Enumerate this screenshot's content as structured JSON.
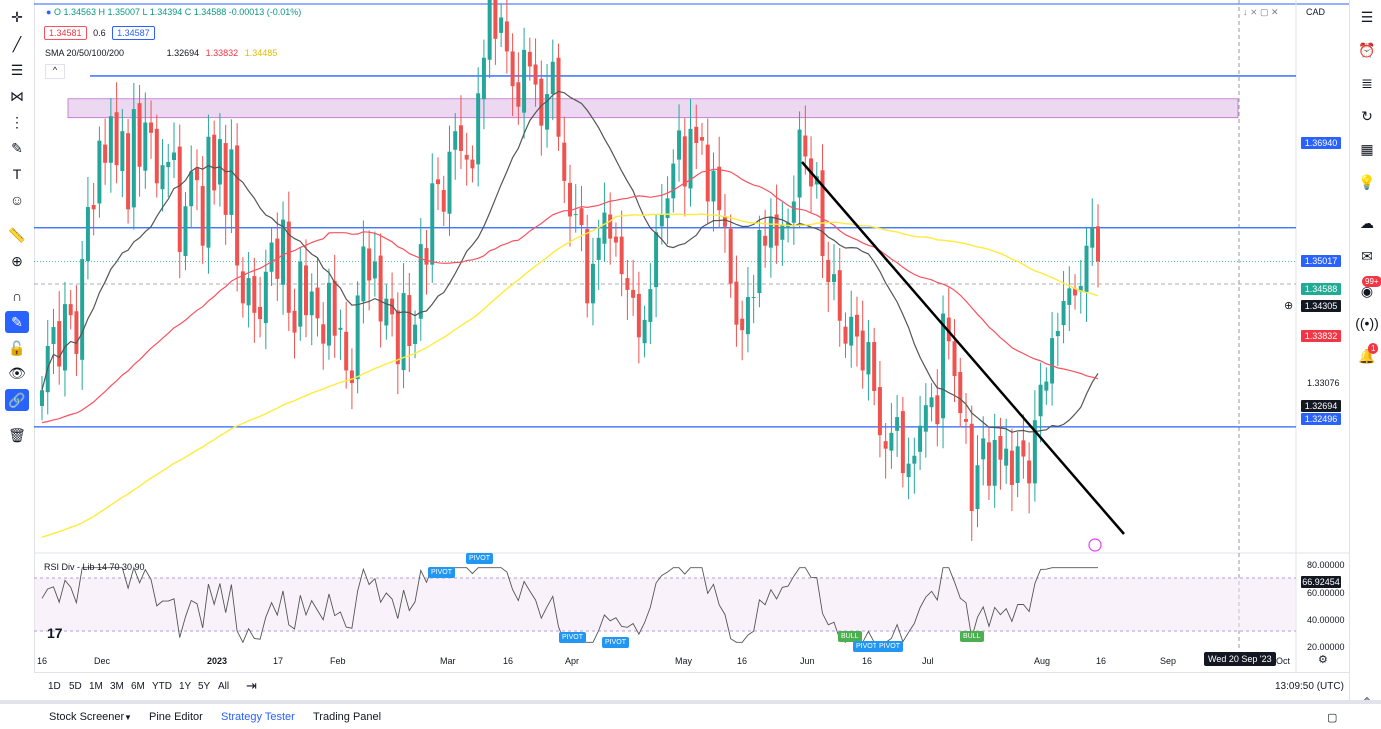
{
  "legend": {
    "ohlc": "O 1.34563  H 1.35007  L 1.34394  C 1.34588  -0.00013 (-0.01%)",
    "bid": "1.34581",
    "spread": "0.6",
    "ask": "1.34587",
    "sma_label": "SMA 20/50/100/200",
    "sma_v1": "1.32694",
    "sma_v2": "1.33832",
    "sma_v3": "1.34485",
    "collapse": "^"
  },
  "currency": "CAD",
  "price_labels": {
    "l1": "1.36940",
    "l2": "1.35017",
    "l3": "1.34588",
    "l4": "1.34305",
    "l5": "1.33832",
    "l6": "1.33076",
    "l7": "1.32694",
    "l8": "1.32496"
  },
  "rsi": {
    "label": "RSI Div - Lib 14 70 30 90",
    "value": "66.92454",
    "axis": [
      "80.00000",
      "60.00000",
      "40.00000",
      "20.00000"
    ],
    "pivot": "PIVOT",
    "bull": "BULL"
  },
  "x_labels": [
    "16",
    "Dec",
    "2023",
    "17",
    "Feb",
    "Mar",
    "16",
    "Apr",
    "May",
    "16",
    "Jun",
    "16",
    "Jul",
    "Aug",
    "16",
    "Sep",
    "Oct"
  ],
  "crosshair_date": "Wed 20 Sep '23",
  "ranges": [
    "1D",
    "5D",
    "1M",
    "3M",
    "6M",
    "YTD",
    "1Y",
    "5Y",
    "All"
  ],
  "clock": "13:09:50 (UTC)",
  "panels": [
    "Stock Screener",
    "Pine Editor",
    "Strategy Tester",
    "Trading Panel"
  ],
  "tv_logo": "17",
  "badges": {
    "alerts": "99+",
    "notif": "1"
  },
  "colors": {
    "up": "#26a69a",
    "down": "#ef5350",
    "sma_fast": "#555555",
    "sma_mid": "#f7525f",
    "sma_slow": "#ffeb3b",
    "line": "#2962ff",
    "zone": "#e1bee7"
  },
  "chart_data": {
    "type": "candlestick",
    "yrange": [
      1.31,
      1.378
    ],
    "levels": [
      1.3694,
      1.35017,
      1.32496
    ],
    "closes": [
      1.3296,
      1.3352,
      1.3376,
      1.3326,
      1.3405,
      1.3391,
      1.3342,
      1.3462,
      1.3528,
      1.3525,
      1.3612,
      1.3584,
      1.3643,
      1.3581,
      1.3624,
      1.3525,
      1.3652,
      1.3579,
      1.3635,
      1.3622,
      1.3558,
      1.3581,
      1.3585,
      1.3597,
      1.3471,
      1.3529,
      1.3573,
      1.3562,
      1.3479,
      1.3617,
      1.3549,
      1.3614,
      1.3518,
      1.3601,
      1.3454,
      1.3406,
      1.3438,
      1.3394,
      1.3386,
      1.3446,
      1.3483,
      1.3437,
      1.3512,
      1.3394,
      1.3369,
      1.3459,
      1.3391,
      1.3421,
      1.3387,
      1.3355,
      1.3432,
      1.3365,
      1.3375,
      1.3321,
      1.3305,
      1.3416,
      1.3478,
      1.3435,
      1.3459,
      1.3383,
      1.3412,
      1.3392,
      1.3329,
      1.3419,
      1.3352,
      1.3379,
      1.3481,
      1.3455,
      1.3558,
      1.3557,
      1.3522,
      1.3598,
      1.3624,
      1.3599,
      1.3588,
      1.3577,
      1.3672,
      1.3717,
      1.3797,
      1.3741,
      1.3768,
      1.3725,
      1.3681,
      1.3655,
      1.3727,
      1.3706,
      1.3683,
      1.3631,
      1.3671,
      1.3712,
      1.3617,
      1.3561,
      1.3516,
      1.3519,
      1.3505,
      1.3406,
      1.3456,
      1.3489,
      1.3521,
      1.3488,
      1.3483,
      1.3443,
      1.3423,
      1.3413,
      1.3363,
      1.3385,
      1.3424,
      1.3496,
      1.3519,
      1.3539,
      1.3583,
      1.3625,
      1.3554,
      1.3627,
      1.3609,
      1.3612,
      1.3535,
      1.3574,
      1.3524,
      1.3503,
      1.3431,
      1.3379,
      1.3372,
      1.3414,
      1.3414,
      1.3499,
      1.3479,
      1.3516,
      1.3479,
      1.3506,
      1.3508,
      1.3535,
      1.3626,
      1.3592,
      1.3554,
      1.3567,
      1.3466,
      1.3433,
      1.3443,
      1.3384,
      1.3355,
      1.3389,
      1.3364,
      1.3321,
      1.3357,
      1.3295,
      1.3239,
      1.3222,
      1.3242,
      1.3262,
      1.3191,
      1.3203,
      1.3213,
      1.3251,
      1.3277,
      1.3287,
      1.3253,
      1.3393,
      1.3358,
      1.3314,
      1.3267,
      1.3256,
      1.3143,
      1.3201,
      1.3235,
      1.3175,
      1.3233,
      1.3208,
      1.3222,
      1.3176,
      1.3225,
      1.3212,
      1.3178,
      1.3258,
      1.3303,
      1.3307,
      1.3362,
      1.3371,
      1.3409,
      1.3425,
      1.3416,
      1.3428,
      1.3479,
      1.3501,
      1.3459
    ]
  }
}
